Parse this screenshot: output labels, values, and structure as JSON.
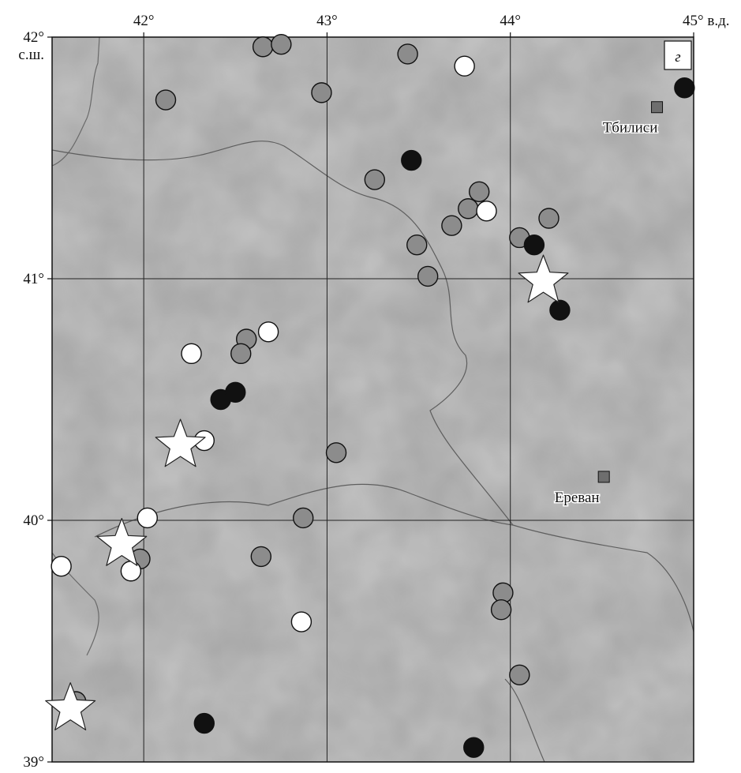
{
  "map": {
    "panel_letter": "г",
    "lon_ticks": [
      {
        "value": 42,
        "label": "42°"
      },
      {
        "value": 43,
        "label": "43°"
      },
      {
        "value": 44,
        "label": "44°"
      },
      {
        "value": 45,
        "label": "45° в.д."
      }
    ],
    "lat_ticks": [
      {
        "value": 42,
        "label": "42°",
        "suffix": "с.ш."
      },
      {
        "value": 41,
        "label": "41°"
      },
      {
        "value": 40,
        "label": "40°"
      },
      {
        "value": 39,
        "label": "39°"
      }
    ],
    "cities": [
      {
        "name": "Тбилиси",
        "lon": 44.8,
        "lat": 41.71
      },
      {
        "name": "Ереван",
        "lon": 44.51,
        "lat": 40.18
      }
    ],
    "colors": {
      "white_marker": "#ffffff",
      "gray_marker": "#8c8c8c",
      "black_marker": "#111111",
      "city_marker": "#6e6e6e",
      "star": "#ffffff"
    },
    "markers": [
      {
        "type": "gray",
        "lon": 41.63,
        "lat": 39.25
      },
      {
        "type": "gray",
        "lon": 41.98,
        "lat": 39.84
      },
      {
        "type": "gray",
        "lon": 42.12,
        "lat": 41.74
      },
      {
        "type": "gray",
        "lon": 42.56,
        "lat": 40.75
      },
      {
        "type": "gray",
        "lon": 42.53,
        "lat": 40.69
      },
      {
        "type": "gray",
        "lon": 42.65,
        "lat": 41.96
      },
      {
        "type": "gray",
        "lon": 42.75,
        "lat": 41.97
      },
      {
        "type": "gray",
        "lon": 42.64,
        "lat": 39.85
      },
      {
        "type": "gray",
        "lon": 42.87,
        "lat": 40.01
      },
      {
        "type": "gray",
        "lon": 42.97,
        "lat": 41.77
      },
      {
        "type": "gray",
        "lon": 43.05,
        "lat": 40.28
      },
      {
        "type": "gray",
        "lon": 43.26,
        "lat": 41.41
      },
      {
        "type": "gray",
        "lon": 43.44,
        "lat": 41.93
      },
      {
        "type": "gray",
        "lon": 43.49,
        "lat": 41.14
      },
      {
        "type": "gray",
        "lon": 43.55,
        "lat": 41.01
      },
      {
        "type": "gray",
        "lon": 43.68,
        "lat": 41.22
      },
      {
        "type": "gray",
        "lon": 43.77,
        "lat": 41.29
      },
      {
        "type": "gray",
        "lon": 43.83,
        "lat": 41.36
      },
      {
        "type": "gray",
        "lon": 44.05,
        "lat": 41.17
      },
      {
        "type": "gray",
        "lon": 44.21,
        "lat": 41.25
      },
      {
        "type": "gray",
        "lon": 43.96,
        "lat": 39.7
      },
      {
        "type": "gray",
        "lon": 43.95,
        "lat": 39.63
      },
      {
        "type": "gray",
        "lon": 44.05,
        "lat": 39.36
      },
      {
        "type": "white",
        "lon": 41.55,
        "lat": 39.81
      },
      {
        "type": "white",
        "lon": 41.93,
        "lat": 39.79
      },
      {
        "type": "white",
        "lon": 42.02,
        "lat": 40.01
      },
      {
        "type": "white",
        "lon": 42.26,
        "lat": 40.69
      },
      {
        "type": "white",
        "lon": 42.33,
        "lat": 40.33
      },
      {
        "type": "white",
        "lon": 42.68,
        "lat": 40.78
      },
      {
        "type": "white",
        "lon": 42.86,
        "lat": 39.58
      },
      {
        "type": "white",
        "lon": 43.75,
        "lat": 41.88
      },
      {
        "type": "white",
        "lon": 43.87,
        "lat": 41.28
      },
      {
        "type": "black",
        "lon": 42.33,
        "lat": 39.16
      },
      {
        "type": "black",
        "lon": 42.42,
        "lat": 40.5
      },
      {
        "type": "black",
        "lon": 42.5,
        "lat": 40.53
      },
      {
        "type": "black",
        "lon": 43.46,
        "lat": 41.49
      },
      {
        "type": "black",
        "lon": 43.8,
        "lat": 39.06
      },
      {
        "type": "black",
        "lon": 44.13,
        "lat": 41.14
      },
      {
        "type": "black",
        "lon": 44.27,
        "lat": 40.87
      },
      {
        "type": "black",
        "lon": 44.95,
        "lat": 41.79
      }
    ],
    "stars": [
      {
        "lon": 41.6,
        "lat": 39.22
      },
      {
        "lon": 41.88,
        "lat": 39.9
      },
      {
        "lon": 42.2,
        "lat": 40.31
      },
      {
        "lon": 44.18,
        "lat": 40.99
      }
    ]
  }
}
